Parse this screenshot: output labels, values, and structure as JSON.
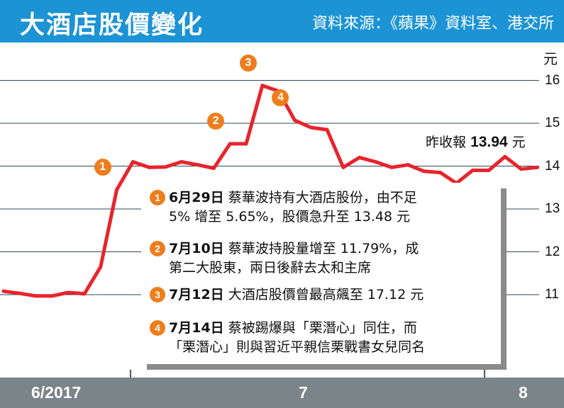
{
  "header": {
    "title": "大酒店股價變化",
    "source": "資料來源：《蘋果》資料室、港交所"
  },
  "y_unit": "元",
  "close_note": {
    "label": "昨收報",
    "value": "13.94",
    "unit": "元"
  },
  "annotations": [
    {
      "num": "1",
      "date": "6月29日",
      "line1": "蔡華波持有大酒店股份，由不足",
      "line2": "5% 增至 5.65%，股價急升至 13.48 元"
    },
    {
      "num": "2",
      "date": "7月10日",
      "line1": "蔡華波持股量增至 11.79%，成",
      "line2": "第二大股東，兩日後辭去太和主席"
    },
    {
      "num": "3",
      "date": "7月12日",
      "line1": "大酒店股價曾最高飆至 17.12 元",
      "line2": ""
    },
    {
      "num": "4",
      "date": "7月14日",
      "line1": "蔡被踢爆與「栗潛心」同住，而",
      "line2": "「栗潛心」則與習近平親信栗戰書女兒同名"
    }
  ],
  "colors": {
    "header": "#1c93d4",
    "line": "#e8242c",
    "marker": "#ee7d1c",
    "footer": "#7b8488",
    "grid": "#2e4a5a"
  },
  "chart_data": {
    "type": "line",
    "title": "大酒店股價變化",
    "ylabel": "元",
    "ylim": [
      10.6,
      16.4
    ],
    "yticks": [
      11,
      12,
      13,
      14,
      15,
      16
    ],
    "grid": "horizontal",
    "x_axis_labels": [
      "6/2017",
      "7",
      "8"
    ],
    "x_axis_label_index": [
      0,
      18,
      36
    ],
    "values": [
      11.08,
      11.03,
      10.97,
      10.97,
      11.05,
      11.02,
      11.65,
      13.45,
      14.1,
      13.97,
      13.98,
      14.1,
      14.03,
      13.95,
      14.52,
      14.52,
      15.88,
      15.75,
      15.07,
      14.9,
      14.85,
      13.97,
      14.2,
      14.1,
      13.97,
      14.03,
      13.88,
      13.85,
      13.6,
      13.9,
      13.9,
      14.22,
      13.93,
      13.97
    ],
    "markers": [
      {
        "num": "1",
        "index": 7
      },
      {
        "num": "2",
        "index": 14
      },
      {
        "num": "3",
        "index": 16
      },
      {
        "num": "4",
        "index": 18
      }
    ]
  }
}
